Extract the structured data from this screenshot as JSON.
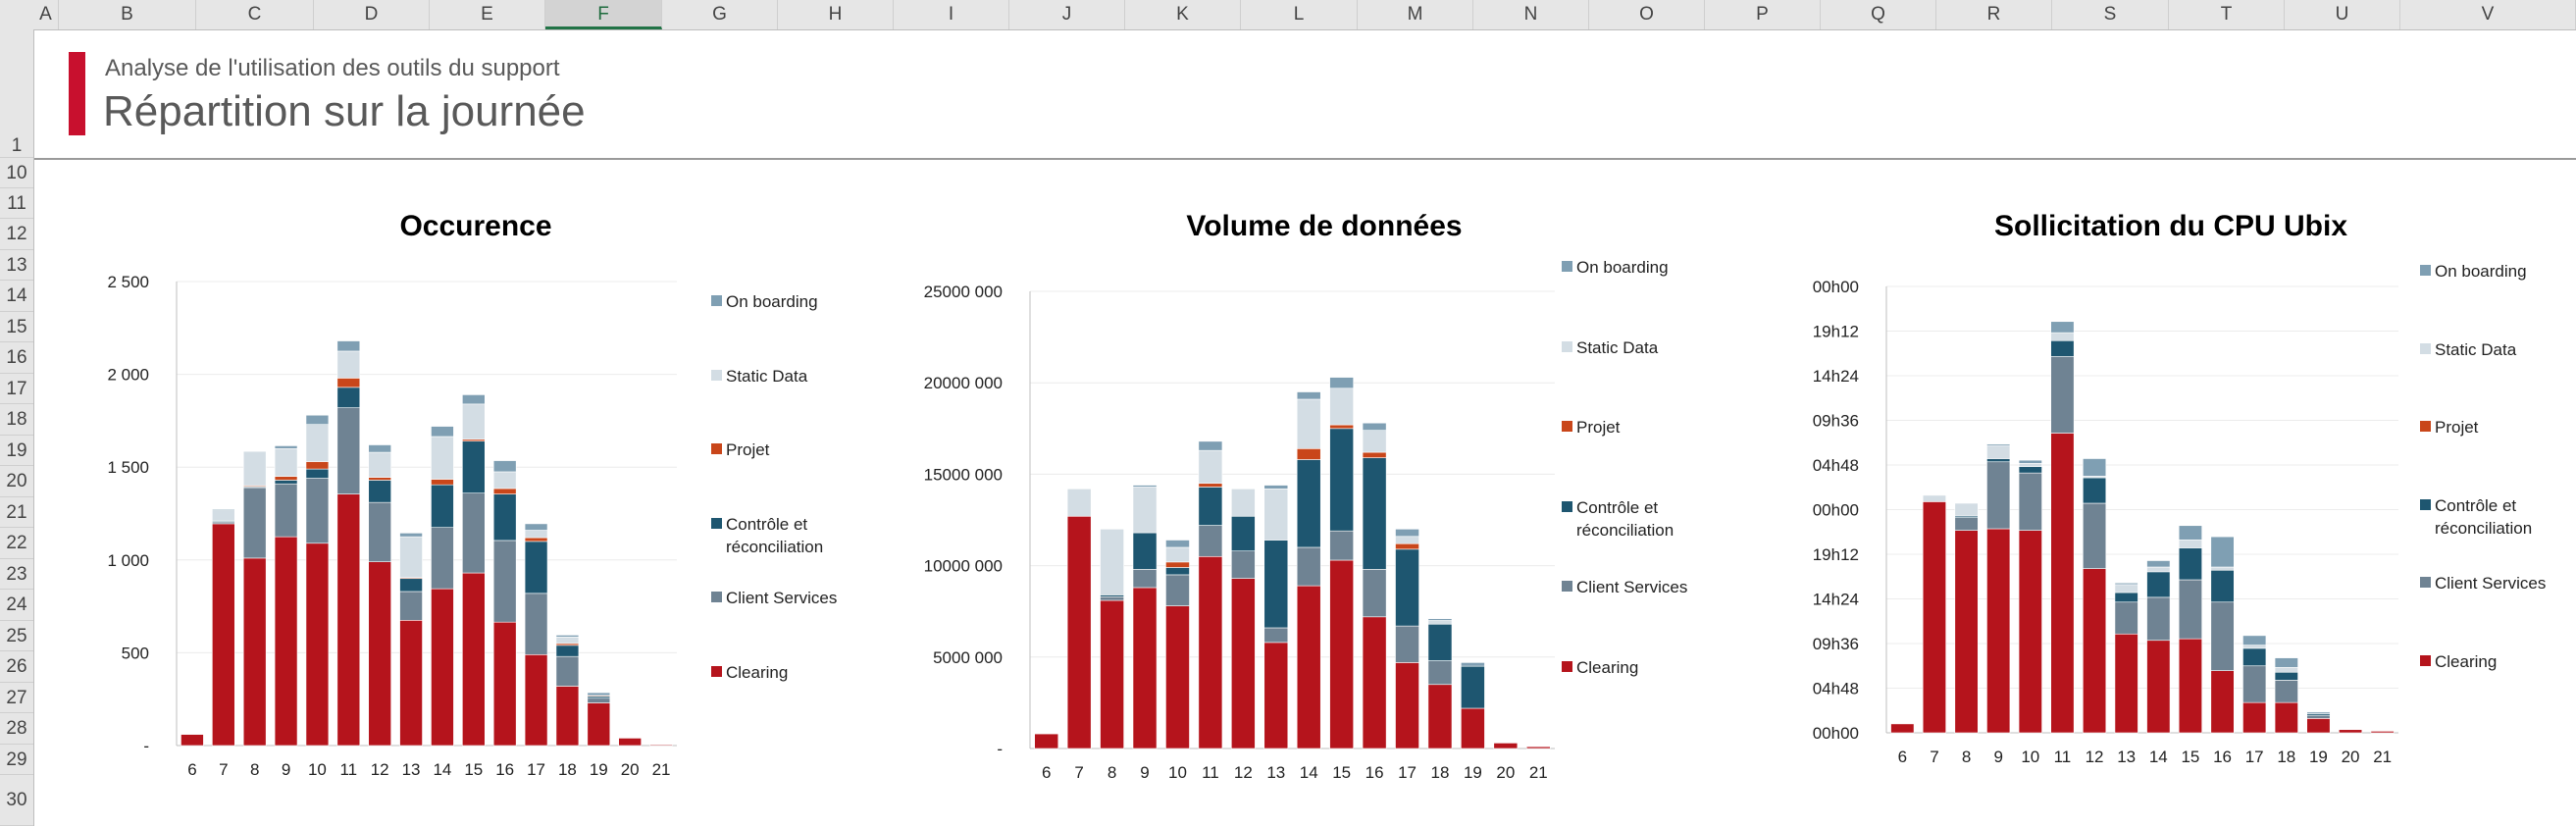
{
  "sheet": {
    "columns": [
      "A",
      "B",
      "C",
      "D",
      "E",
      "F",
      "G",
      "H",
      "I",
      "J",
      "K",
      "L",
      "M",
      "N",
      "O",
      "P",
      "Q",
      "R",
      "S",
      "T",
      "U",
      "V"
    ],
    "selected_column": "F",
    "rows": [
      "1",
      "10",
      "11",
      "12",
      "13",
      "14",
      "15",
      "16",
      "17",
      "18",
      "19",
      "20",
      "21",
      "22",
      "23",
      "24",
      "25",
      "26",
      "27",
      "28",
      "29",
      "30"
    ]
  },
  "header": {
    "subtitle": "Analyse de l'utilisation des outils du support",
    "title": "Répartition sur la journée"
  },
  "colors": {
    "Clearing": "#b5141c",
    "Client Services": "#6f8393",
    "Contrôle et réconciliation": "#1e5670",
    "Projet": "#c9461a",
    "Static Data": "#d3dde4",
    "On boarding": "#7f9fb3"
  },
  "chart_data": [
    {
      "type": "bar",
      "stacked": true,
      "title": "Occurence",
      "categories": [
        "6",
        "7",
        "8",
        "9",
        "10",
        "11",
        "12",
        "13",
        "14",
        "15",
        "16",
        "17",
        "18",
        "19",
        "20",
        "21"
      ],
      "ylim": [
        0,
        2500
      ],
      "yticks": [
        "-",
        "500",
        "1 000",
        "1 500",
        "2 000",
        "2 500"
      ],
      "legend_position": "right",
      "series": [
        {
          "name": "Clearing",
          "values": [
            60,
            1195,
            1010,
            1125,
            1090,
            1355,
            990,
            675,
            845,
            930,
            665,
            490,
            320,
            230,
            40,
            5
          ]
        },
        {
          "name": "Client Services",
          "values": [
            0,
            10,
            380,
            285,
            350,
            465,
            320,
            155,
            330,
            430,
            440,
            330,
            160,
            25,
            0,
            0
          ]
        },
        {
          "name": "Contrôle et réconciliation",
          "values": [
            0,
            5,
            5,
            20,
            50,
            110,
            120,
            70,
            230,
            280,
            250,
            280,
            60,
            10,
            0,
            0
          ]
        },
        {
          "name": "Projet",
          "values": [
            0,
            0,
            5,
            20,
            40,
            50,
            15,
            5,
            30,
            10,
            30,
            20,
            10,
            5,
            0,
            0
          ]
        },
        {
          "name": "Static Data",
          "values": [
            0,
            60,
            185,
            150,
            200,
            145,
            135,
            220,
            230,
            190,
            90,
            40,
            35,
            0,
            0,
            0
          ]
        },
        {
          "name": "On boarding",
          "values": [
            0,
            5,
            0,
            15,
            50,
            55,
            40,
            20,
            55,
            50,
            60,
            35,
            10,
            15,
            0,
            0
          ]
        }
      ]
    },
    {
      "type": "bar",
      "stacked": true,
      "title": "Volume de données",
      "categories": [
        "6",
        "7",
        "8",
        "9",
        "10",
        "11",
        "12",
        "13",
        "14",
        "15",
        "16",
        "17",
        "18",
        "19",
        "20",
        "21"
      ],
      "ylim": [
        0,
        25000000
      ],
      "yticks": [
        "-",
        "5000 000",
        "10000 000",
        "15000 000",
        "20000 000",
        "25000 000"
      ],
      "legend_position": "right",
      "series": [
        {
          "name": "Clearing",
          "values": [
            800000,
            12700000,
            8100000,
            8800000,
            7800000,
            10500000,
            9300000,
            5800000,
            8900000,
            10300000,
            7200000,
            4700000,
            3500000,
            2200000,
            300000,
            100000
          ]
        },
        {
          "name": "Client Services",
          "values": [
            0,
            0,
            200000,
            1000000,
            1700000,
            1700000,
            1500000,
            800000,
            2100000,
            1600000,
            2600000,
            2000000,
            1300000,
            0,
            0,
            0
          ]
        },
        {
          "name": "Contrôle et réconciliation",
          "values": [
            0,
            0,
            100000,
            2000000,
            400000,
            2100000,
            1900000,
            4800000,
            4800000,
            5600000,
            6100000,
            4200000,
            2000000,
            2300000,
            0,
            0
          ]
        },
        {
          "name": "Projet",
          "values": [
            0,
            0,
            0,
            0,
            300000,
            200000,
            0,
            0,
            600000,
            200000,
            300000,
            300000,
            0,
            0,
            0,
            0
          ]
        },
        {
          "name": "Static Data",
          "values": [
            0,
            1500000,
            3600000,
            2500000,
            800000,
            1800000,
            1500000,
            2800000,
            2700000,
            2000000,
            1200000,
            400000,
            200000,
            0,
            0,
            0
          ]
        },
        {
          "name": "On boarding",
          "values": [
            0,
            0,
            0,
            100000,
            400000,
            500000,
            0,
            200000,
            400000,
            600000,
            400000,
            400000,
            100000,
            200000,
            0,
            0
          ]
        }
      ]
    },
    {
      "type": "bar",
      "stacked": true,
      "title": "Sollicitation  du CPU Ubix",
      "categories": [
        "6",
        "7",
        "8",
        "9",
        "10",
        "11",
        "12",
        "13",
        "14",
        "15",
        "16",
        "17",
        "18",
        "19",
        "20",
        "21"
      ],
      "ylim": [
        0,
        14
      ],
      "yticks": [
        "00h00",
        "04h48",
        "09h36",
        "14h24",
        "19h12",
        "00h00",
        "04h48",
        "09h36",
        "14h24",
        "19h12",
        "00h00"
      ],
      "legend_position": "right",
      "series": [
        {
          "name": "Clearing",
          "values": [
            0.28,
            7.25,
            6.35,
            6.4,
            6.35,
            9.4,
            5.15,
            3.1,
            2.9,
            2.95,
            1.95,
            0.95,
            0.95,
            0.45,
            0.1,
            0.05
          ]
        },
        {
          "name": "Client Services",
          "values": [
            0,
            0,
            0.4,
            2.1,
            1.8,
            2.4,
            2.05,
            1.0,
            1.35,
            1.85,
            2.15,
            1.15,
            0.7,
            0.1,
            0,
            0
          ]
        },
        {
          "name": "Contrôle et réconciliation",
          "values": [
            0,
            0,
            0.05,
            0.1,
            0.2,
            0.5,
            0.8,
            0.3,
            0.8,
            1.0,
            1.0,
            0.55,
            0.25,
            0.05,
            0,
            0
          ]
        },
        {
          "name": "Projet",
          "values": [
            0,
            0,
            0,
            0,
            0,
            0,
            0,
            0,
            0,
            0,
            0,
            0,
            0,
            0,
            0,
            0
          ]
        },
        {
          "name": "Static Data",
          "values": [
            0,
            0.2,
            0.4,
            0.4,
            0.1,
            0.25,
            0.05,
            0.25,
            0.15,
            0.25,
            0.1,
            0.1,
            0.15,
            0,
            0,
            0
          ]
        },
        {
          "name": "On boarding",
          "values": [
            0,
            0,
            0,
            0.05,
            0.1,
            0.35,
            0.55,
            0.05,
            0.2,
            0.45,
            0.95,
            0.3,
            0.3,
            0.05,
            0,
            0
          ]
        }
      ]
    }
  ]
}
